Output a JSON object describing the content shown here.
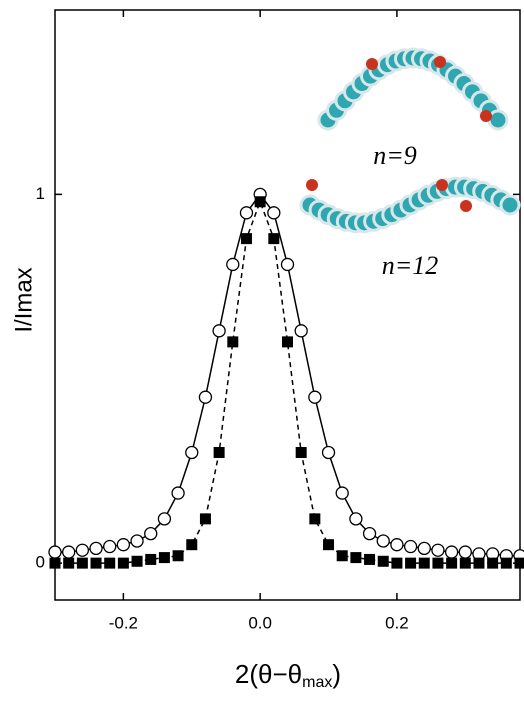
{
  "chart_data": {
    "type": "line",
    "y_label": "I/Imax",
    "x_label_parts": [
      "2(θ−θ",
      "max",
      ")"
    ],
    "annotations": [
      "n=9",
      "n=12"
    ],
    "x": [
      -0.3,
      -0.28,
      -0.26,
      -0.24,
      -0.22,
      -0.2,
      -0.18,
      -0.16,
      -0.14,
      -0.12,
      -0.1,
      -0.08,
      -0.06,
      -0.04,
      -0.02,
      0.0,
      0.02,
      0.04,
      0.06,
      0.08,
      0.1,
      0.12,
      0.14,
      0.16,
      0.18,
      0.2,
      0.22,
      0.24,
      0.26,
      0.28,
      0.3,
      0.32,
      0.34,
      0.36,
      0.38
    ],
    "series": [
      {
        "color": "#000000",
        "marker": "open-circle",
        "linestyle": "solid",
        "values": [
          0.03,
          0.03,
          0.035,
          0.04,
          0.045,
          0.05,
          0.06,
          0.08,
          0.12,
          0.19,
          0.3,
          0.45,
          0.63,
          0.81,
          0.95,
          1.0,
          0.95,
          0.81,
          0.63,
          0.45,
          0.3,
          0.19,
          0.12,
          0.08,
          0.06,
          0.05,
          0.045,
          0.04,
          0.035,
          0.03,
          0.03,
          0.025,
          0.025,
          0.02,
          0.02
        ]
      },
      {
        "color": "#000000",
        "marker": "filled-square",
        "linestyle": "dashed",
        "values": [
          0.0,
          0.0,
          0.0,
          0.0,
          0.0,
          0.0,
          0.005,
          0.01,
          0.015,
          0.02,
          0.05,
          0.12,
          0.3,
          0.6,
          0.88,
          0.98,
          0.88,
          0.6,
          0.3,
          0.12,
          0.05,
          0.02,
          0.015,
          0.01,
          0.005,
          0.0,
          0.0,
          0.0,
          0.0,
          0.0,
          0.0,
          0.0,
          0.0,
          0.0,
          0.0
        ]
      }
    ],
    "xlim": [
      -0.3,
      0.38
    ],
    "ylim": [
      -0.1,
      1.5
    ],
    "xticks": [
      {
        "value": -0.2,
        "label": "-0.2"
      },
      {
        "value": 0,
        "label": "0.0"
      },
      {
        "value": 0.2,
        "label": "0.2"
      }
    ],
    "yticks": [
      0,
      1
    ]
  }
}
